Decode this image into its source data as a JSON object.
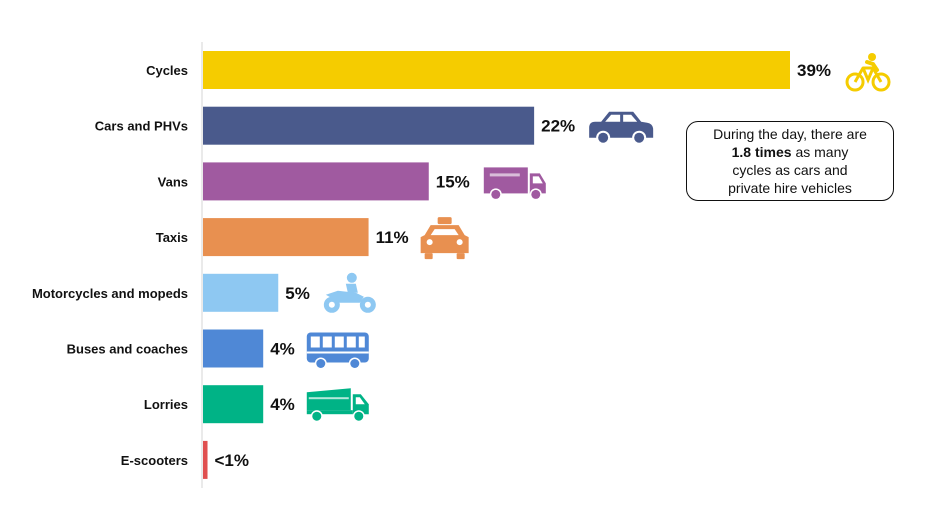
{
  "chart_data": {
    "type": "bar",
    "orientation": "horizontal",
    "unit": "%",
    "categories": [
      "Cycles",
      "Cars and PHVs",
      "Vans",
      "Taxis",
      "Motorcycles and mopeds",
      "Buses and coaches",
      "Lorries",
      "E-scooters"
    ],
    "values": [
      39,
      22,
      15,
      11,
      5,
      4,
      4,
      0.3
    ],
    "value_labels": [
      "39%",
      "22%",
      "15%",
      "11%",
      "5%",
      "4%",
      "4%",
      "<1%"
    ],
    "colors": [
      "#f5cc00",
      "#4a5a8c",
      "#a05aa0",
      "#e89050",
      "#8ec8f2",
      "#4f88d6",
      "#00b386",
      "#e05050"
    ],
    "icons": [
      "bicycle-icon",
      "car-icon",
      "van-icon",
      "taxi-icon",
      "motorcycle-icon",
      "bus-icon",
      "lorry-icon",
      ""
    ],
    "xlim": [
      0,
      39
    ],
    "grid": false,
    "legend": "none"
  },
  "callout": {
    "line1": "During the day, there are",
    "bold": "1.8 times",
    "line2_rest": " as many",
    "line3": "cycles as cars and",
    "line4": "private hire vehicles"
  }
}
